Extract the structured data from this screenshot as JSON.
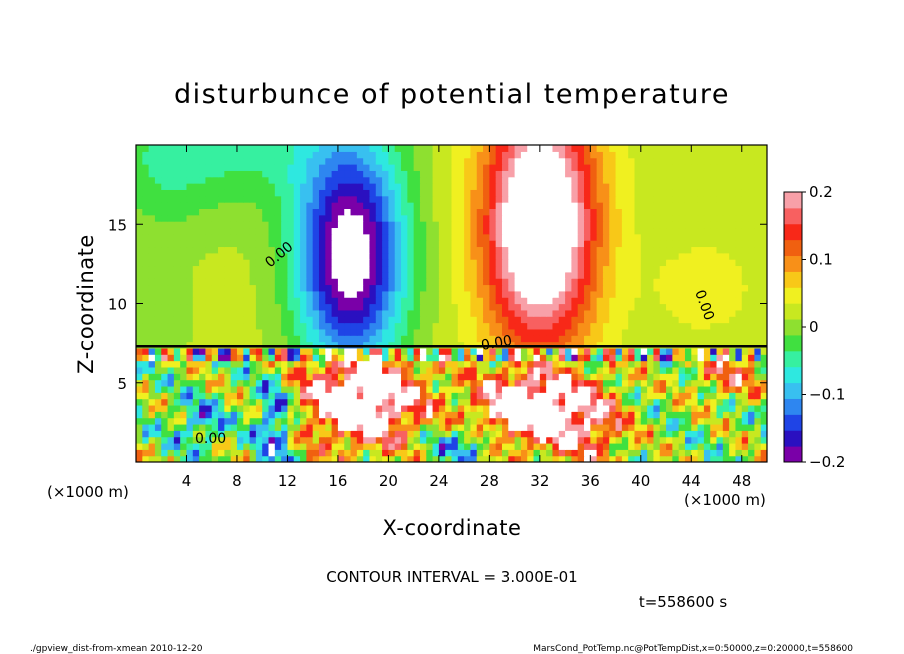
{
  "chart_data": {
    "type": "heatmap",
    "title": "disturbunce of potential temperature",
    "xlabel": "X-coordinate",
    "ylabel": "Z-coordinate",
    "x_scale_label": "(×1000 m)",
    "y_scale_label": "(×1000 m)",
    "xlim": [
      0,
      50
    ],
    "ylim": [
      0,
      20
    ],
    "x_ticks": [
      4,
      8,
      12,
      16,
      20,
      24,
      28,
      32,
      36,
      40,
      44,
      48
    ],
    "y_ticks": [
      5,
      10,
      15
    ],
    "colorbar": {
      "min": -0.2,
      "max": 0.2,
      "tick_values": [
        0.2,
        0.1,
        0,
        -0.1,
        -0.2
      ],
      "tick_labels": [
        "0.2",
        "0.1",
        "0",
        "−0.1",
        "−0.2"
      ],
      "colors": [
        "#7a00a8",
        "#2a10c0",
        "#1f44e6",
        "#2e86f0",
        "#38c0f0",
        "#2ee8e0",
        "#36f0a0",
        "#40e040",
        "#8ee030",
        "#c8e820",
        "#f0f020",
        "#f8c818",
        "#f89018",
        "#f06010",
        "#f82818",
        "#f86060",
        "#f8a0a8"
      ]
    },
    "contour_labels": [
      "0.00",
      "0.00",
      "0.00",
      "0.00"
    ],
    "contour_interval_text": "CONTOUR INTERVAL = 3.000E-01",
    "time_text": "t=558600 s"
  },
  "footer": {
    "left": "./gpview_dist-from-xmean  2010-12-20",
    "right": "MarsCond_PotTemp.nc@PotTempDist,x=0:50000,z=0:20000,t=558600"
  }
}
